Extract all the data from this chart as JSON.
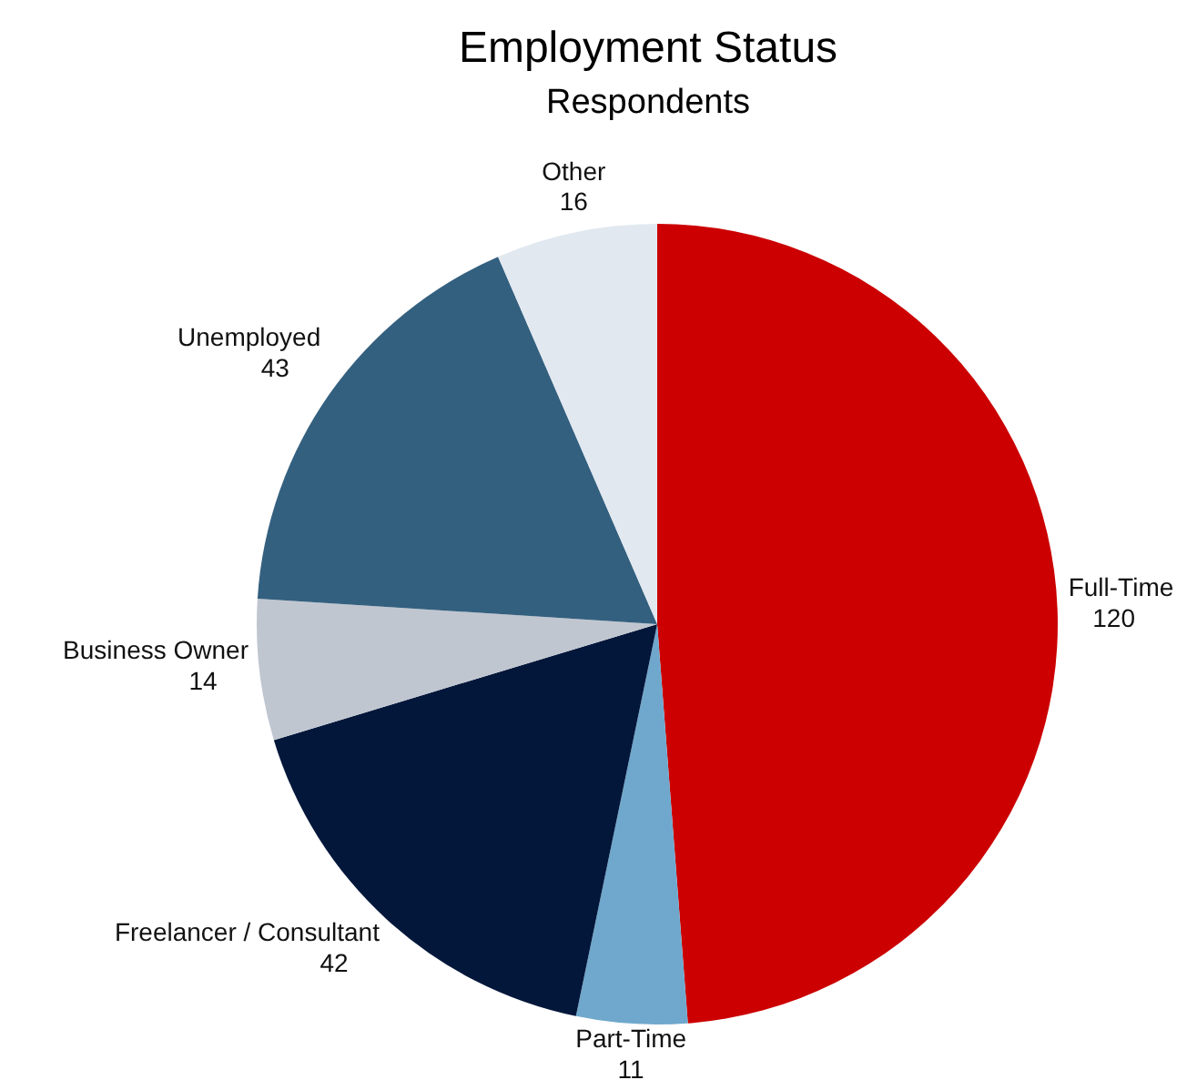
{
  "chart_data": {
    "type": "pie",
    "title": "Employment Status",
    "subtitle": "Respondents",
    "categories": [
      "Full-Time",
      "Part-Time",
      "Freelancer / Consultant",
      "Business Owner",
      "Unemployed",
      "Other"
    ],
    "values": [
      120,
      11,
      42,
      14,
      43,
      16
    ],
    "colors": [
      "#cc0000",
      "#6fa8cc",
      "#03173b",
      "#c0c6d0",
      "#34607f",
      "#e1e8f0"
    ],
    "data_labels": true
  }
}
